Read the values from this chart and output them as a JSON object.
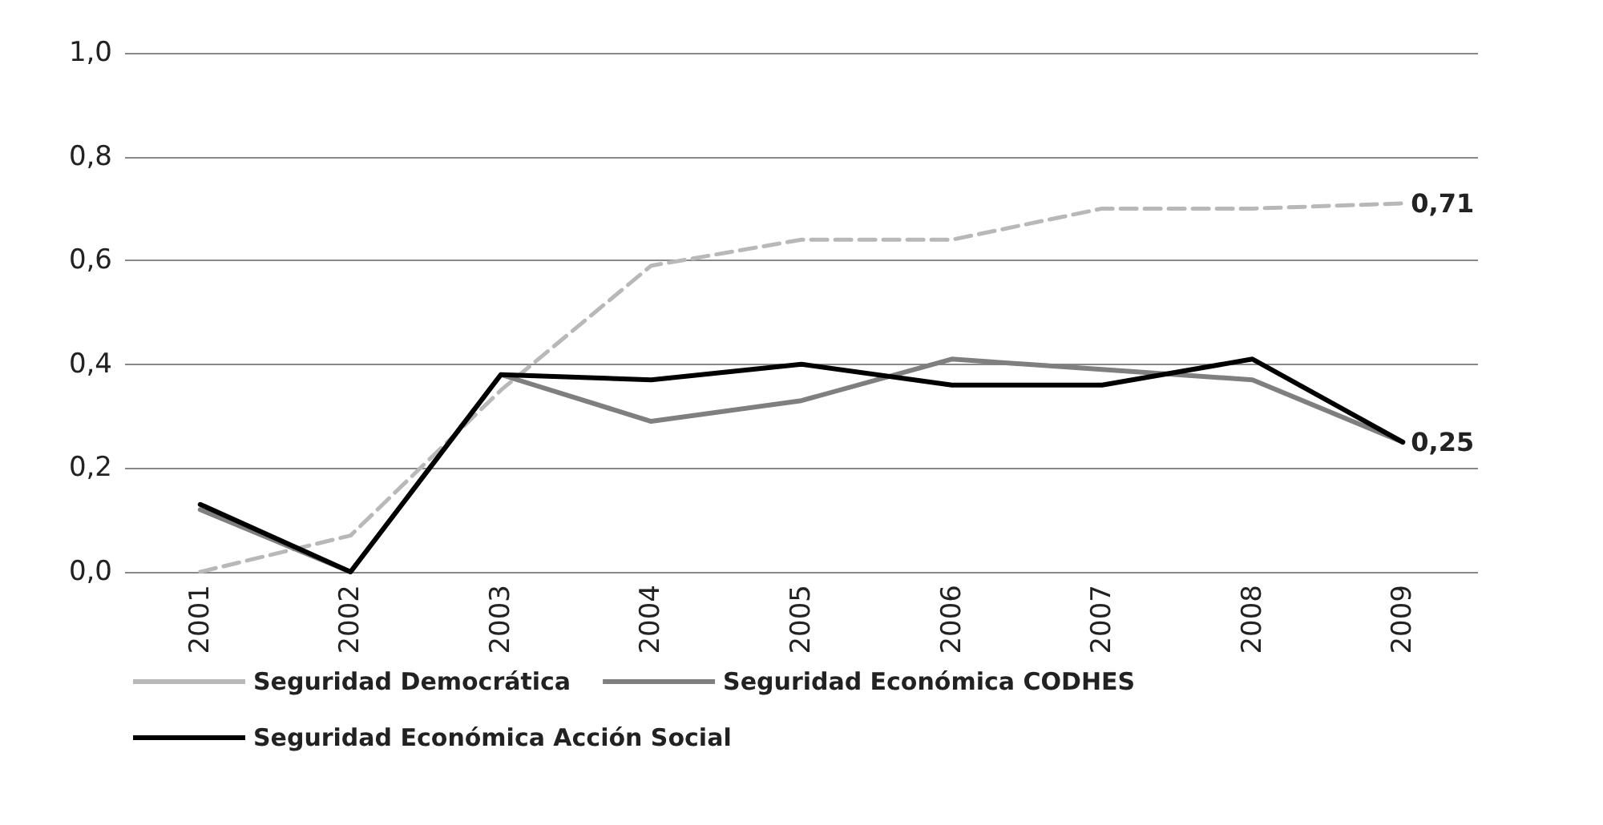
{
  "chart_data": {
    "type": "line",
    "categories": [
      "2001",
      "2002",
      "2003",
      "2004",
      "2005",
      "2006",
      "2007",
      "2008",
      "2009"
    ],
    "series": [
      {
        "name": "Seguridad Democrática",
        "color": "#b8b8b8",
        "line_style": "dashed",
        "values": [
          0.0,
          0.07,
          0.35,
          0.59,
          0.64,
          0.64,
          0.7,
          0.7,
          0.71
        ],
        "value_labels": [
          null,
          null,
          null,
          null,
          null,
          null,
          null,
          null,
          "0,71"
        ]
      },
      {
        "name": "Seguridad Económica CODHES",
        "color": "#7f7f7f",
        "line_style": "solid",
        "values": [
          0.12,
          0.0,
          0.38,
          0.29,
          0.33,
          0.41,
          0.39,
          0.37,
          0.25
        ]
      },
      {
        "name": "Seguridad Económica Acción Social",
        "color": "#000000",
        "line_style": "solid",
        "values": [
          0.13,
          0.0,
          0.38,
          0.37,
          0.4,
          0.36,
          0.36,
          0.41,
          0.25
        ],
        "value_labels": [
          null,
          null,
          null,
          null,
          null,
          null,
          null,
          null,
          "0,25"
        ]
      }
    ],
    "ylim": [
      0,
      1
    ],
    "yticks": [
      {
        "value": 0,
        "label": "0,0"
      },
      {
        "value": 0.2,
        "label": "0,2"
      },
      {
        "value": 0.4,
        "label": "0,4"
      },
      {
        "value": 0.6,
        "label": "0,6"
      },
      {
        "value": 0.8,
        "label": "0,8"
      },
      {
        "value": 1,
        "label": "1,0"
      }
    ],
    "grid": "y",
    "legend": "bottom",
    "marker": "none"
  }
}
